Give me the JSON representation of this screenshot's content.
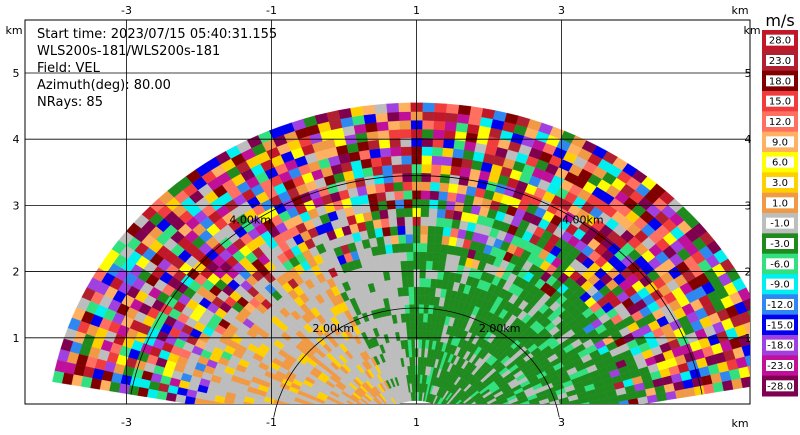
{
  "info": {
    "start_time": "Start time: 2023/07/15 05:40:31.155",
    "instrument": "WLS200s-181/WLS200s-181",
    "field": "Field: VEL",
    "azimuth": "Azimuth(deg): 80.00",
    "nrays": "NRays: 85"
  },
  "chart_data": {
    "type": "heatmap",
    "xlabel": "km",
    "ylabel": "km",
    "xlim": [
      -4.4,
      5.6
    ],
    "ylim": [
      0,
      5.8
    ],
    "x_ticks": [
      -3,
      -1,
      1,
      3
    ],
    "x_tick_labels": [
      "-3",
      "-1",
      "1",
      "3"
    ],
    "y_ticks": [
      1,
      2,
      3,
      4,
      5
    ],
    "y_tick_labels": [
      "1",
      "2",
      "3",
      "4",
      "5"
    ],
    "range_rings_km": [
      2.0,
      4.0
    ],
    "range_ring_labels": [
      "2.00km",
      "4.00km"
    ],
    "grid": true,
    "max_range_km": 5.1,
    "colorbar": {
      "unit": "m/s",
      "levels": [
        "28.0",
        "23.0",
        "18.0",
        "15.0",
        "12.0",
        "9.0",
        "6.0",
        "3.0",
        "1.0",
        "-1.0",
        "-3.0",
        "-6.0",
        "-9.0",
        "-12.0",
        "-15.0",
        "-18.0",
        "-23.0",
        "-28.0"
      ],
      "colors": [
        "#c01828",
        "#b02030",
        "#800000",
        "#f03c3c",
        "#ff7060",
        "#ffb060",
        "#ffff00",
        "#ffd000",
        "#f09a45",
        "#bdbdbd",
        "#1f8b1f",
        "#33e080",
        "#00f0f0",
        "#2f88f0",
        "#0000ee",
        "#a040e0",
        "#c0109a",
        "#800050"
      ]
    }
  }
}
